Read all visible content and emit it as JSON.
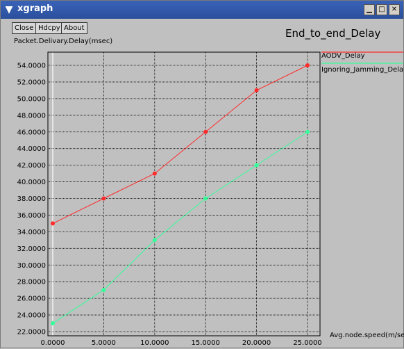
{
  "window": {
    "title": "xgraph",
    "buttons": {
      "minimize": "▁",
      "maximize": "□",
      "close": "✕"
    }
  },
  "toolbar": {
    "close_label": "Close",
    "hdcpy_label": "Hdcpy",
    "about_label": "About"
  },
  "colors": {
    "background": "#c0c0c0",
    "series1": "#ff2a2a",
    "series2": "#33ff99",
    "grid": "#000000"
  },
  "chart_data": {
    "type": "line",
    "title": "End_to_end_Delay",
    "xlabel": "Avg.node.speed(m/sec)",
    "ylabel": "Packet.Delivary.Delay(msec)",
    "xlim": [
      0,
      25
    ],
    "ylim": [
      22,
      55
    ],
    "x_ticks": [
      "0.0000",
      "5.0000",
      "10.0000",
      "15.0000",
      "20.0000",
      "25.0000"
    ],
    "y_ticks": [
      "22.0000",
      "24.0000",
      "26.0000",
      "28.0000",
      "30.0000",
      "32.0000",
      "34.0000",
      "36.0000",
      "38.0000",
      "40.0000",
      "42.0000",
      "44.0000",
      "46.0000",
      "48.0000",
      "50.0000",
      "52.0000",
      "54.0000"
    ],
    "grid": true,
    "legend_position": "top-right",
    "x": [
      0,
      5,
      10,
      15,
      20,
      25
    ],
    "series": [
      {
        "name": "AODV_Delay",
        "values": [
          35,
          38,
          41,
          46,
          51,
          54
        ],
        "color": "#ff2a2a"
      },
      {
        "name": "Ignoring_Jamming_Delay",
        "values": [
          23,
          27,
          33,
          38,
          42,
          46
        ],
        "color": "#33ff99"
      }
    ]
  }
}
